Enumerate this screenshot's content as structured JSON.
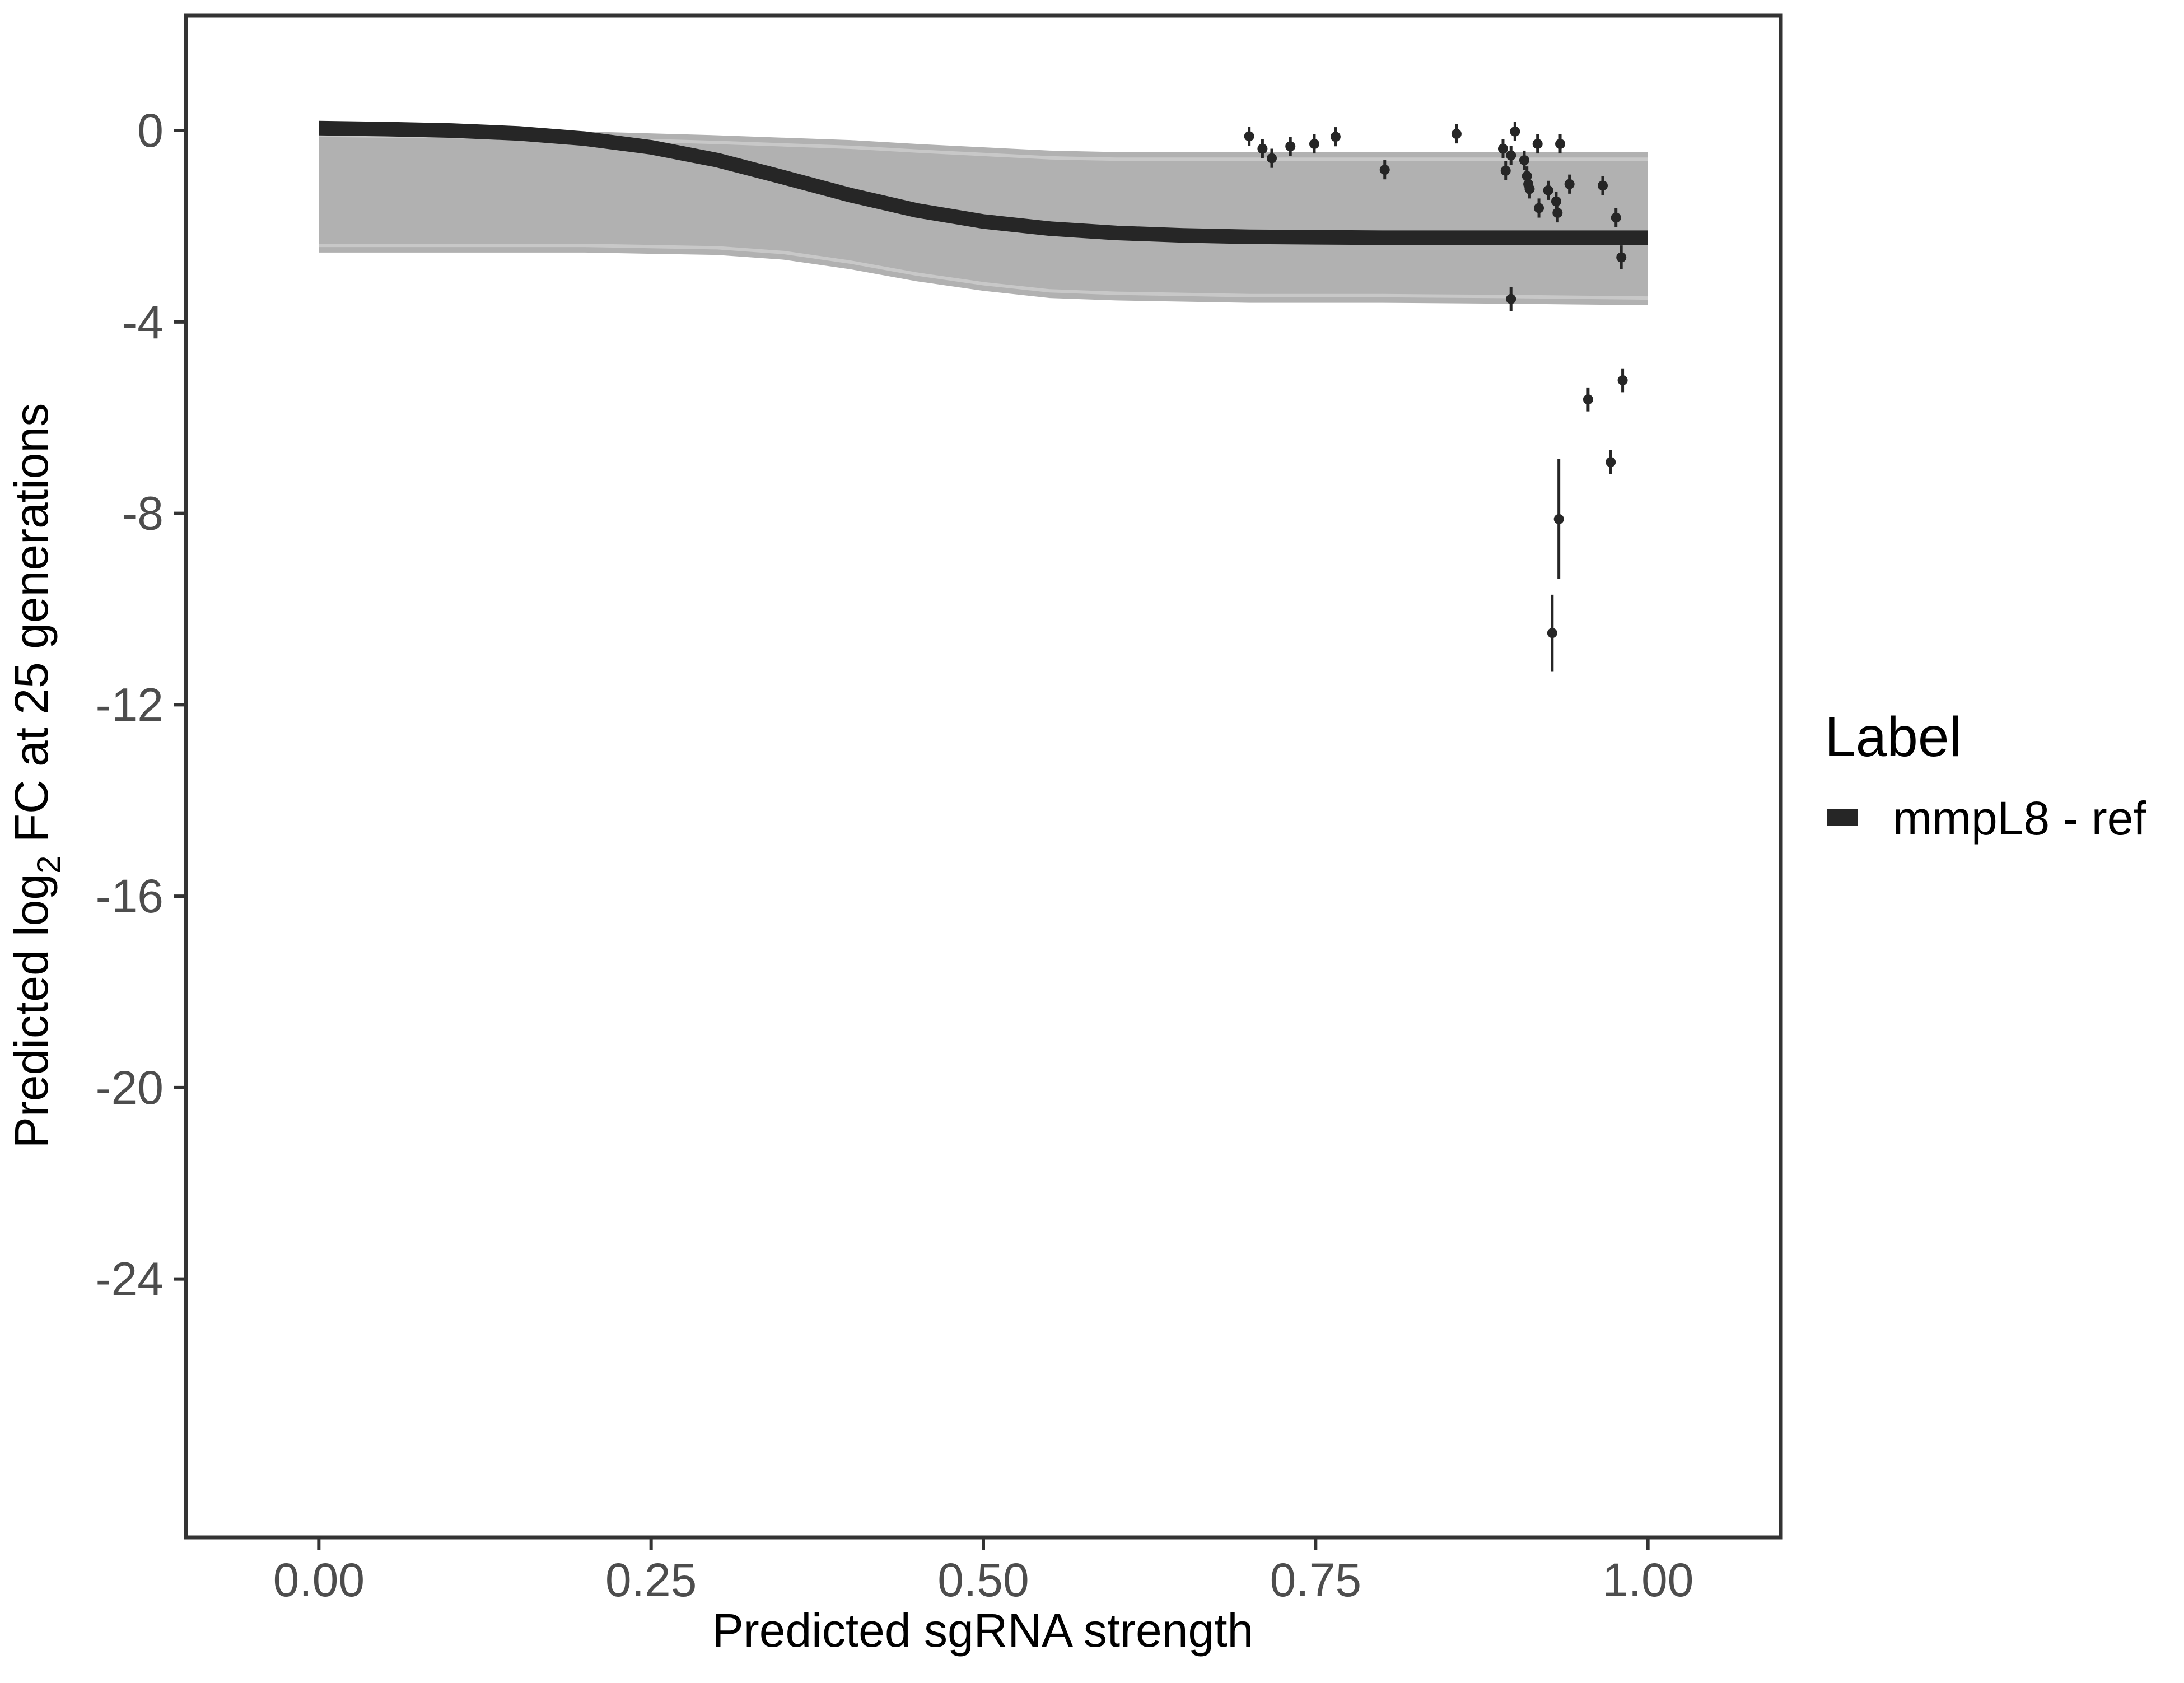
{
  "chart_data": {
    "type": "line",
    "xlabel": "Predicted sgRNA strength",
    "ylabel": {
      "prefix": "Predicted  log",
      "subscript": "2",
      "suffix": " FC at 25 generations"
    },
    "xlim": [
      -0.1,
      1.1
    ],
    "ylim": [
      -29.4,
      2.4
    ],
    "x_ticks": [
      0.0,
      0.25,
      0.5,
      0.75,
      1.0
    ],
    "x_tick_labels": [
      "0.00",
      "0.25",
      "0.50",
      "0.75",
      "1.00"
    ],
    "y_ticks": [
      0,
      -4,
      -8,
      -12,
      -16,
      -20,
      -24
    ],
    "y_tick_labels": [
      "0",
      "-4",
      "-8",
      "-12",
      "-16",
      "-20",
      "-24"
    ],
    "grid": false,
    "legend": {
      "title": "Label",
      "position": "right",
      "entries": [
        {
          "label": "mmpL8 - ref",
          "color": "#262626"
        }
      ]
    },
    "series": [
      {
        "name": "mmpL8 - ref",
        "kind": "fitted-curve",
        "color": "#262626",
        "x": [
          0.0,
          0.05,
          0.1,
          0.15,
          0.2,
          0.25,
          0.3,
          0.35,
          0.4,
          0.45,
          0.5,
          0.55,
          0.6,
          0.65,
          0.7,
          0.75,
          0.8,
          0.85,
          0.9,
          0.95,
          1.0
        ],
        "y": [
          0.05,
          0.03,
          0.0,
          -0.06,
          -0.17,
          -0.35,
          -0.62,
          -0.98,
          -1.35,
          -1.67,
          -1.9,
          -2.05,
          -2.14,
          -2.19,
          -2.22,
          -2.23,
          -2.24,
          -2.24,
          -2.24,
          -2.24,
          -2.24
        ]
      }
    ],
    "posterior_band": {
      "description_color": "#a9a9a9",
      "x": [
        0.0,
        0.1,
        0.2,
        0.3,
        0.35,
        0.4,
        0.45,
        0.5,
        0.55,
        0.6,
        0.7,
        0.8,
        0.9,
        1.0
      ],
      "upper": [
        0.05,
        0.02,
        -0.02,
        -0.1,
        -0.15,
        -0.2,
        -0.28,
        -0.35,
        -0.42,
        -0.45,
        -0.45,
        -0.45,
        -0.45,
        -0.45
      ],
      "lower": [
        -2.55,
        -2.55,
        -2.55,
        -2.6,
        -2.7,
        -2.9,
        -3.15,
        -3.35,
        -3.5,
        -3.55,
        -3.6,
        -3.6,
        -3.62,
        -3.65
      ]
    },
    "points": [
      {
        "x": 0.7,
        "y": -0.12,
        "err": 0.2
      },
      {
        "x": 0.71,
        "y": -0.38,
        "err": 0.2
      },
      {
        "x": 0.717,
        "y": -0.58,
        "err": 0.2
      },
      {
        "x": 0.731,
        "y": -0.33,
        "err": 0.2
      },
      {
        "x": 0.749,
        "y": -0.28,
        "err": 0.2
      },
      {
        "x": 0.765,
        "y": -0.13,
        "err": 0.2
      },
      {
        "x": 0.802,
        "y": -0.82,
        "err": 0.2
      },
      {
        "x": 0.856,
        "y": -0.07,
        "err": 0.2
      },
      {
        "x": 0.891,
        "y": -0.38,
        "err": 0.2
      },
      {
        "x": 0.893,
        "y": -0.84,
        "err": 0.2
      },
      {
        "x": 0.897,
        "y": -0.52,
        "err": 0.2
      },
      {
        "x": 0.9,
        "y": -0.02,
        "err": 0.2
      },
      {
        "x": 0.907,
        "y": -0.62,
        "err": 0.2
      },
      {
        "x": 0.909,
        "y": -0.95,
        "err": 0.2
      },
      {
        "x": 0.91,
        "y": -1.12,
        "err": 0.2
      },
      {
        "x": 0.911,
        "y": -1.22,
        "err": 0.2
      },
      {
        "x": 0.917,
        "y": -0.28,
        "err": 0.2
      },
      {
        "x": 0.918,
        "y": -1.62,
        "err": 0.2
      },
      {
        "x": 0.925,
        "y": -1.25,
        "err": 0.2
      },
      {
        "x": 0.928,
        "y": -10.5,
        "err": 0.8
      },
      {
        "x": 0.931,
        "y": -1.48,
        "err": 0.2
      },
      {
        "x": 0.932,
        "y": -1.72,
        "err": 0.2
      },
      {
        "x": 0.933,
        "y": -8.12,
        "err": 1.25
      },
      {
        "x": 0.934,
        "y": -0.28,
        "err": 0.2
      },
      {
        "x": 0.941,
        "y": -1.12,
        "err": 0.2
      },
      {
        "x": 0.955,
        "y": -5.62,
        "err": 0.25
      },
      {
        "x": 0.966,
        "y": -1.15,
        "err": 0.2
      },
      {
        "x": 0.972,
        "y": -6.93,
        "err": 0.25
      },
      {
        "x": 0.976,
        "y": -1.82,
        "err": 0.2
      },
      {
        "x": 0.98,
        "y": -2.65,
        "err": 0.25
      },
      {
        "x": 0.981,
        "y": -5.22,
        "err": 0.25
      },
      {
        "x": 0.897,
        "y": -3.52,
        "err": 0.25
      }
    ]
  }
}
